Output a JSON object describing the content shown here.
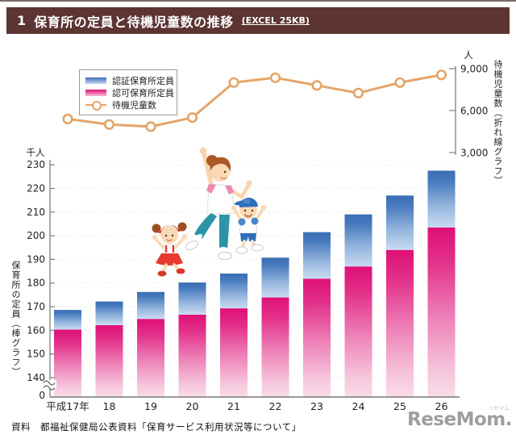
{
  "header": {
    "number": "1",
    "title": "保育所の定員と待機児童数の推移",
    "file_link": "(EXCEL 25KB)"
  },
  "chart_data": {
    "type": "bar",
    "subtype": "stacked-bar-with-line-dual-axis",
    "categories": [
      "平成17年",
      "18",
      "19",
      "20",
      "21",
      "22",
      "23",
      "24",
      "25",
      "26"
    ],
    "series": [
      {
        "name": "認証保育所定員",
        "type": "bar",
        "stack": "top",
        "color_top": "#3a6db4",
        "color_bottom": "#c9dbf1",
        "values": [
          8.3,
          10.0,
          11.4,
          13.6,
          14.7,
          16.8,
          19.7,
          22.0,
          23.0,
          24.0
        ]
      },
      {
        "name": "認可保育所定員",
        "type": "bar",
        "stack": "bottom",
        "color_top": "#df1077",
        "color_bottom": "#f9dcea",
        "values": [
          160.3,
          162.2,
          164.8,
          166.6,
          169.3,
          173.9,
          181.8,
          187.0,
          194.0,
          203.5
        ]
      },
      {
        "name": "待機児童数",
        "type": "line",
        "axis": "right",
        "color": "#e5a469",
        "marker": "open-circle",
        "values": [
          5400,
          5000,
          4850,
          5500,
          8000,
          8350,
          7800,
          7250,
          8000,
          8550
        ]
      }
    ],
    "left_axis": {
      "unit": "千人",
      "title": "保育所の定員（棒グラフ）",
      "ticks": [
        230,
        220,
        210,
        200,
        190,
        180,
        170,
        160,
        150,
        140
      ],
      "zero_label": "0",
      "axis_break": true
    },
    "right_axis": {
      "unit": "人",
      "title": "待機児童数（折れ線グラフ）",
      "ticks": [
        9000,
        6000,
        3000
      ],
      "range": [
        3000,
        9000
      ]
    },
    "legend_position": "top-left",
    "grid": "faint-dashed-horizontal"
  },
  "illustration_alt": "ジャンプする母親と女の子・男の子のイラスト",
  "footer": {
    "source": "資料　都福祉保健局公表資料「保育サービス利用状況等について」",
    "logo": "ReseMom.",
    "logo_ruby": "リセマム"
  }
}
